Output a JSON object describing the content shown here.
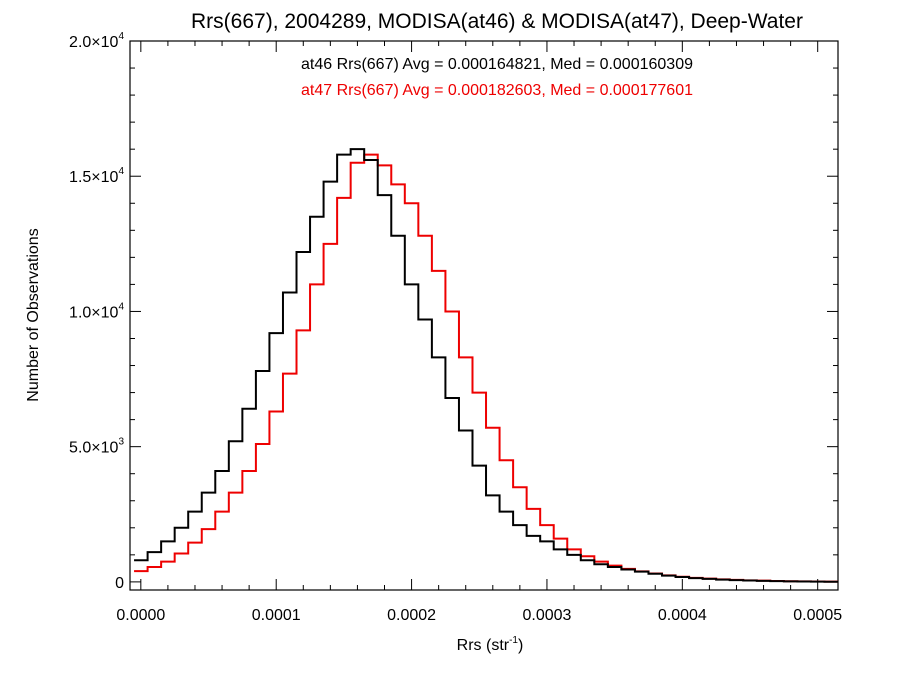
{
  "chart_data": {
    "type": "line",
    "title": "Rrs(667), 2004289, MODISA(at46) & MODISA(at47), Deep-Water",
    "xlabel": {
      "base": "Rrs (str",
      "sup": "-1",
      "close": ")"
    },
    "ylabel": "Number of Observations",
    "xlim": [
      -8e-06,
      0.000515
    ],
    "ylim": [
      -300,
      20000
    ],
    "x_ticks": [
      {
        "value": 0.0,
        "label": "0.0000"
      },
      {
        "value": 0.0001,
        "label": "0.0001"
      },
      {
        "value": 0.0002,
        "label": "0.0002"
      },
      {
        "value": 0.0003,
        "label": "0.0003"
      },
      {
        "value": 0.0004,
        "label": "0.0004"
      },
      {
        "value": 0.0005,
        "label": "0.0005"
      }
    ],
    "y_ticks": [
      {
        "value": 0,
        "label": "0",
        "sup": ""
      },
      {
        "value": 5000,
        "label": "5.0×10",
        "sup": "3"
      },
      {
        "value": 10000,
        "label": "1.0×10",
        "sup": "4"
      },
      {
        "value": 15000,
        "label": "1.5×10",
        "sup": "4"
      },
      {
        "value": 20000,
        "label": "2.0×10",
        "sup": "4"
      }
    ],
    "annotations": [
      {
        "text": "at46 Rrs(667) Avg = 0.000164821, Med = 0.000160309",
        "color": "#000000"
      },
      {
        "text": "at47 Rrs(667) Avg = 0.000182603, Med = 0.000177601",
        "color": "#ee0000"
      }
    ],
    "series": [
      {
        "name": "at46",
        "color": "#000000",
        "x": [
          0.0,
          1e-05,
          2e-05,
          3e-05,
          4e-05,
          5e-05,
          6e-05,
          7e-05,
          8e-05,
          9e-05,
          0.0001,
          0.00011,
          0.00012,
          0.00013,
          0.00014,
          0.00015,
          0.00016,
          0.00017,
          0.00018,
          0.00019,
          0.0002,
          0.00021,
          0.00022,
          0.00023,
          0.00024,
          0.00025,
          0.00026,
          0.00027,
          0.00028,
          0.00029,
          0.0003,
          0.00031,
          0.00032,
          0.00033,
          0.00034,
          0.00035,
          0.00036,
          0.00037,
          0.00038,
          0.00039,
          0.0004,
          0.00041,
          0.00042,
          0.00043,
          0.00044,
          0.00045,
          0.00046,
          0.00047,
          0.00048,
          0.00049,
          0.0005,
          0.00051
        ],
        "y": [
          800,
          1100,
          1500,
          2000,
          2600,
          3300,
          4100,
          5200,
          6400,
          7800,
          9200,
          10700,
          12200,
          13500,
          14800,
          15800,
          16000,
          15600,
          14300,
          12800,
          11000,
          9700,
          8300,
          6800,
          5600,
          4300,
          3200,
          2600,
          2100,
          1700,
          1500,
          1200,
          1000,
          800,
          650,
          550,
          460,
          380,
          300,
          230,
          180,
          140,
          110,
          85,
          65,
          50,
          38,
          28,
          20,
          14,
          10,
          6
        ]
      },
      {
        "name": "at47",
        "color": "#ee0000",
        "x": [
          0.0,
          1e-05,
          2e-05,
          3e-05,
          4e-05,
          5e-05,
          6e-05,
          7e-05,
          8e-05,
          9e-05,
          0.0001,
          0.00011,
          0.00012,
          0.00013,
          0.00014,
          0.00015,
          0.00016,
          0.00017,
          0.00018,
          0.00019,
          0.0002,
          0.00021,
          0.00022,
          0.00023,
          0.00024,
          0.00025,
          0.00026,
          0.00027,
          0.00028,
          0.00029,
          0.0003,
          0.00031,
          0.00032,
          0.00033,
          0.00034,
          0.00035,
          0.00036,
          0.00037,
          0.00038,
          0.00039,
          0.0004,
          0.00041,
          0.00042,
          0.00043,
          0.00044,
          0.00045,
          0.00046,
          0.00047,
          0.00048,
          0.00049,
          0.0005,
          0.00051
        ],
        "y": [
          400,
          550,
          750,
          1050,
          1450,
          1950,
          2600,
          3300,
          4100,
          5100,
          6300,
          7700,
          9300,
          11000,
          12500,
          14200,
          15500,
          15800,
          15400,
          14700,
          14000,
          12800,
          11500,
          10000,
          8300,
          7000,
          5700,
          4500,
          3500,
          2700,
          2100,
          1600,
          1200,
          950,
          750,
          600,
          480,
          390,
          310,
          240,
          190,
          150,
          120,
          95,
          75,
          58,
          45,
          34,
          25,
          18,
          12,
          8
        ]
      }
    ]
  }
}
